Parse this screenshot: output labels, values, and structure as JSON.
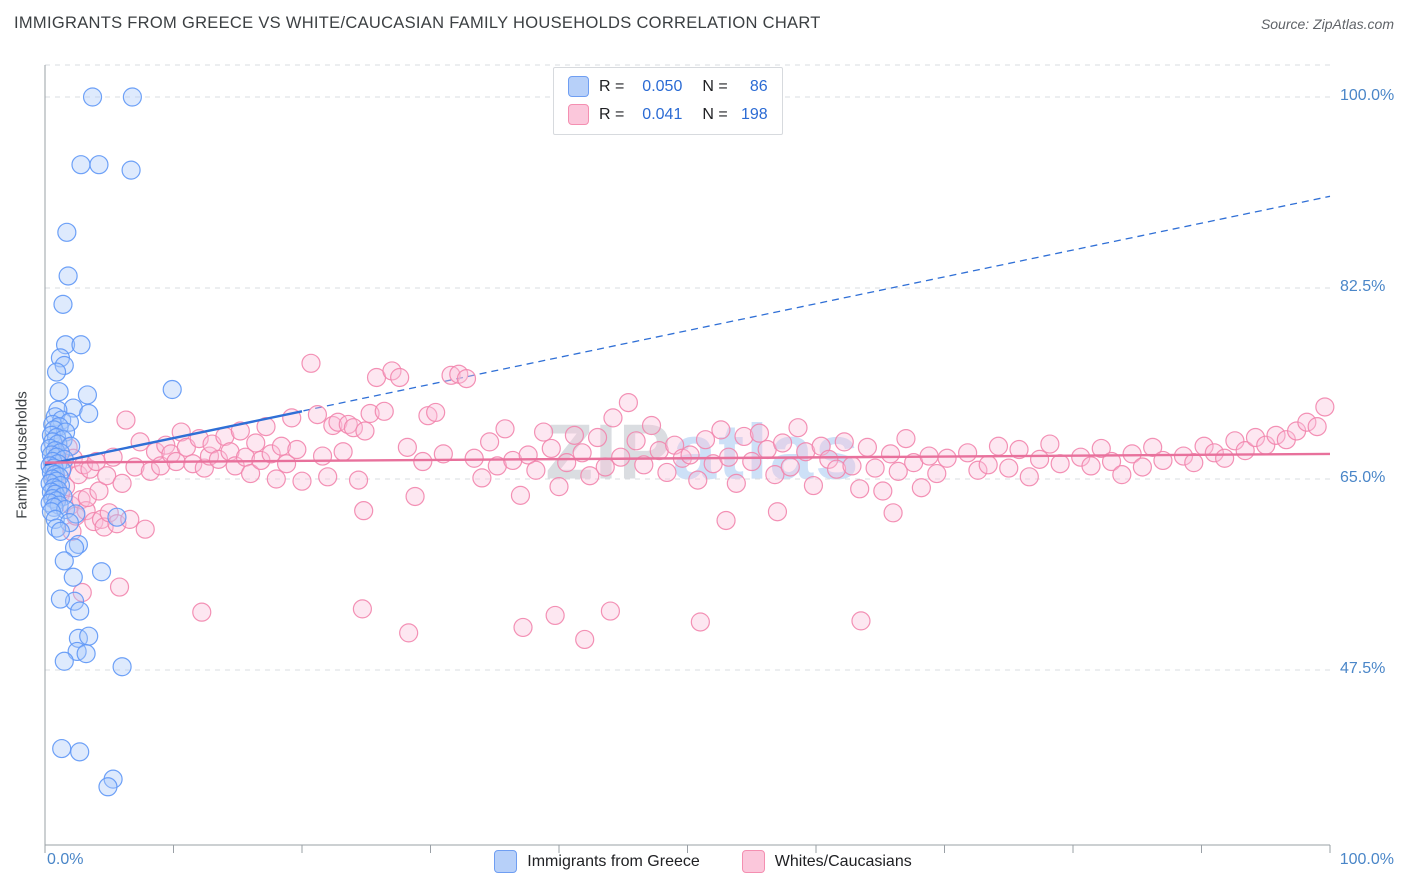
{
  "header": {
    "title": "IMMIGRANTS FROM GREECE VS WHITE/CAUCASIAN FAMILY HOUSEHOLDS CORRELATION CHART",
    "source": "Source: ZipAtlas.com"
  },
  "watermark": {
    "zip": "ZIP",
    "atlas": "atlas"
  },
  "legend_box": {
    "rows": [
      {
        "series": "greece",
        "r_label": "R =",
        "r_value": "0.050",
        "n_label": "N =",
        "n_value": "86"
      },
      {
        "series": "whites",
        "r_label": "R =",
        "r_value": "0.041",
        "n_label": "N =",
        "n_value": "198"
      }
    ]
  },
  "axes": {
    "y_label": "Family Households",
    "y_ticks": [
      "100.0%",
      "82.5%",
      "65.0%",
      "47.5%"
    ],
    "x_min_label": "0.0%",
    "x_max_label": "100.0%"
  },
  "bottom_legend": [
    {
      "label": "Immigrants from Greece"
    },
    {
      "label": "Whites/Caucasians"
    }
  ],
  "colors": {
    "blue_fill": "#a8c7fa",
    "blue_stroke": "#5e97f6",
    "pink_fill": "#f9c0d9",
    "pink_stroke": "#f285ad",
    "blue_trend": "#2f6fd6",
    "pink_trend": "#e8719c",
    "grid": "#dadce0",
    "axis": "#9aa0a6",
    "tick_label": "#4a86c8"
  },
  "chart_data": {
    "type": "scatter",
    "title": "Immigrants from Greece vs White/Caucasian Family Households Correlation Chart",
    "xlabel": "Immigrants from Greece (%)",
    "ylabel": "Family Households",
    "xlim": [
      0,
      100
    ],
    "ylim": [
      31,
      103
    ],
    "y_tick_values": [
      100,
      82.5,
      65,
      47.5
    ],
    "x_tick_step": 10,
    "legend_position": "bottom",
    "grid": "horizontal-dashed",
    "series": [
      {
        "key": "greece",
        "name": "Immigrants from Greece",
        "R": 0.05,
        "N": 86,
        "fill": "#a8c7fa",
        "stroke": "#5e97f6",
        "points": [
          [
            3.7,
            100
          ],
          [
            6.8,
            100
          ],
          [
            2.8,
            93.8
          ],
          [
            4.2,
            93.8
          ],
          [
            6.7,
            93.3
          ],
          [
            1.7,
            87.6
          ],
          [
            1.8,
            83.6
          ],
          [
            1.4,
            81.0
          ],
          [
            1.6,
            77.3
          ],
          [
            2.8,
            77.3
          ],
          [
            1.2,
            76.1
          ],
          [
            1.5,
            75.4
          ],
          [
            0.9,
            74.8
          ],
          [
            1.1,
            73.0
          ],
          [
            9.9,
            73.2
          ],
          [
            3.3,
            72.7
          ],
          [
            2.2,
            71.5
          ],
          [
            1.0,
            71.3
          ],
          [
            3.4,
            71.0
          ],
          [
            0.8,
            70.7
          ],
          [
            1.3,
            70.4
          ],
          [
            1.9,
            70.2
          ],
          [
            0.6,
            70.0
          ],
          [
            1.1,
            69.8
          ],
          [
            0.7,
            69.5
          ],
          [
            1.6,
            69.3
          ],
          [
            0.5,
            69.0
          ],
          [
            0.9,
            68.8
          ],
          [
            1.4,
            68.6
          ],
          [
            0.6,
            68.4
          ],
          [
            1.0,
            68.2
          ],
          [
            2.0,
            68.0
          ],
          [
            0.4,
            67.8
          ],
          [
            0.8,
            67.6
          ],
          [
            1.2,
            67.4
          ],
          [
            0.5,
            67.2
          ],
          [
            0.9,
            67.0
          ],
          [
            1.5,
            66.8
          ],
          [
            0.6,
            66.6
          ],
          [
            1.0,
            66.4
          ],
          [
            0.4,
            66.2
          ],
          [
            0.7,
            66.0
          ],
          [
            1.3,
            65.8
          ],
          [
            0.5,
            65.6
          ],
          [
            0.8,
            65.4
          ],
          [
            1.1,
            65.2
          ],
          [
            0.6,
            65.0
          ],
          [
            0.9,
            64.8
          ],
          [
            0.4,
            64.6
          ],
          [
            1.2,
            64.4
          ],
          [
            0.7,
            64.2
          ],
          [
            1.0,
            64.0
          ],
          [
            0.5,
            63.8
          ],
          [
            0.8,
            63.6
          ],
          [
            1.4,
            63.4
          ],
          [
            0.6,
            63.2
          ],
          [
            0.9,
            63.0
          ],
          [
            0.4,
            62.8
          ],
          [
            1.1,
            62.6
          ],
          [
            0.7,
            62.4
          ],
          [
            1.6,
            62.2
          ],
          [
            0.5,
            62.0
          ],
          [
            2.4,
            61.8
          ],
          [
            5.6,
            61.5
          ],
          [
            0.8,
            61.3
          ],
          [
            1.9,
            61.0
          ],
          [
            0.9,
            60.5
          ],
          [
            1.2,
            60.2
          ],
          [
            2.6,
            59.0
          ],
          [
            2.3,
            58.7
          ],
          [
            1.5,
            57.5
          ],
          [
            2.2,
            56.0
          ],
          [
            4.4,
            56.5
          ],
          [
            2.3,
            53.8
          ],
          [
            1.2,
            54.0
          ],
          [
            2.7,
            52.9
          ],
          [
            2.6,
            50.4
          ],
          [
            3.4,
            50.6
          ],
          [
            2.5,
            49.2
          ],
          [
            3.2,
            49.0
          ],
          [
            1.5,
            48.3
          ],
          [
            6.0,
            47.8
          ],
          [
            1.3,
            40.3
          ],
          [
            2.7,
            40.0
          ],
          [
            5.3,
            37.5
          ],
          [
            4.9,
            36.8
          ]
        ]
      },
      {
        "key": "whites",
        "name": "Whites/Caucasians",
        "R": 0.041,
        "N": 198,
        "fill": "#f9c0d9",
        "stroke": "#f285ad",
        "points": [
          [
            0.6,
            66.4
          ],
          [
            0.8,
            65.1
          ],
          [
            1.0,
            67.3
          ],
          [
            1.2,
            63.6
          ],
          [
            1.4,
            66.1
          ],
          [
            1.6,
            64.3
          ],
          [
            1.8,
            67.9
          ],
          [
            2.0,
            62.6
          ],
          [
            2.1,
            60.2
          ],
          [
            2.2,
            66.9
          ],
          [
            2.4,
            61.6
          ],
          [
            2.6,
            65.4
          ],
          [
            2.8,
            63.1
          ],
          [
            2.9,
            54.6
          ],
          [
            3.0,
            66.3
          ],
          [
            3.2,
            62.1
          ],
          [
            3.3,
            63.3
          ],
          [
            3.5,
            65.9
          ],
          [
            3.8,
            61.1
          ],
          [
            4.0,
            66.6
          ],
          [
            4.2,
            63.9
          ],
          [
            4.4,
            61.3
          ],
          [
            4.6,
            60.6
          ],
          [
            4.8,
            65.3
          ],
          [
            5.0,
            61.9
          ],
          [
            5.3,
            67.0
          ],
          [
            5.6,
            60.9
          ],
          [
            5.8,
            55.1
          ],
          [
            6.0,
            64.6
          ],
          [
            6.3,
            70.4
          ],
          [
            6.6,
            61.3
          ],
          [
            7.0,
            66.1
          ],
          [
            7.4,
            68.4
          ],
          [
            7.8,
            60.4
          ],
          [
            8.2,
            65.7
          ],
          [
            8.6,
            67.5
          ],
          [
            9.0,
            66.2
          ],
          [
            9.4,
            68.1
          ],
          [
            9.8,
            67.3
          ],
          [
            10.2,
            66.6
          ],
          [
            10.6,
            69.3
          ],
          [
            11.0,
            67.9
          ],
          [
            11.5,
            66.4
          ],
          [
            12.0,
            68.7
          ],
          [
            12.2,
            52.8
          ],
          [
            12.4,
            66.0
          ],
          [
            12.8,
            67.1
          ],
          [
            13.0,
            68.2
          ],
          [
            13.5,
            66.8
          ],
          [
            14.0,
            68.9
          ],
          [
            14.4,
            67.5
          ],
          [
            14.8,
            66.2
          ],
          [
            15.2,
            69.4
          ],
          [
            15.6,
            67.0
          ],
          [
            16.0,
            65.5
          ],
          [
            16.4,
            68.3
          ],
          [
            16.8,
            66.7
          ],
          [
            17.2,
            69.8
          ],
          [
            17.6,
            67.3
          ],
          [
            18.0,
            65.0
          ],
          [
            18.4,
            68.0
          ],
          [
            18.8,
            66.4
          ],
          [
            19.2,
            70.6
          ],
          [
            19.6,
            67.7
          ],
          [
            20.0,
            64.8
          ],
          [
            20.7,
            75.6
          ],
          [
            21.2,
            70.9
          ],
          [
            21.6,
            67.1
          ],
          [
            22.0,
            65.2
          ],
          [
            22.4,
            69.9
          ],
          [
            22.8,
            70.2
          ],
          [
            23.2,
            67.5
          ],
          [
            23.6,
            70.0
          ],
          [
            24.0,
            69.7
          ],
          [
            24.4,
            64.9
          ],
          [
            24.7,
            53.1
          ],
          [
            24.8,
            62.1
          ],
          [
            24.9,
            69.4
          ],
          [
            25.3,
            71.0
          ],
          [
            25.8,
            74.3
          ],
          [
            26.4,
            71.2
          ],
          [
            27.0,
            74.9
          ],
          [
            27.6,
            74.3
          ],
          [
            28.2,
            67.9
          ],
          [
            28.3,
            50.9
          ],
          [
            28.8,
            63.4
          ],
          [
            29.4,
            66.6
          ],
          [
            29.8,
            70.8
          ],
          [
            30.4,
            71.1
          ],
          [
            31.0,
            67.3
          ],
          [
            31.6,
            74.5
          ],
          [
            32.2,
            74.6
          ],
          [
            32.8,
            74.2
          ],
          [
            33.4,
            66.9
          ],
          [
            34.0,
            65.1
          ],
          [
            34.6,
            68.4
          ],
          [
            35.2,
            66.2
          ],
          [
            35.8,
            69.6
          ],
          [
            36.4,
            66.7
          ],
          [
            37.0,
            63.5
          ],
          [
            37.2,
            51.4
          ],
          [
            37.6,
            67.2
          ],
          [
            38.2,
            65.8
          ],
          [
            38.8,
            69.3
          ],
          [
            39.4,
            67.8
          ],
          [
            39.7,
            52.5
          ],
          [
            40.0,
            64.3
          ],
          [
            40.6,
            66.5
          ],
          [
            41.2,
            69.0
          ],
          [
            41.8,
            67.4
          ],
          [
            42.0,
            50.3
          ],
          [
            42.4,
            65.3
          ],
          [
            43.0,
            68.8
          ],
          [
            43.6,
            66.1
          ],
          [
            44.0,
            52.9
          ],
          [
            44.2,
            70.6
          ],
          [
            44.8,
            67.0
          ],
          [
            45.4,
            72.0
          ],
          [
            46.0,
            68.5
          ],
          [
            46.6,
            66.3
          ],
          [
            47.2,
            69.9
          ],
          [
            47.8,
            67.6
          ],
          [
            48.4,
            65.6
          ],
          [
            49.0,
            68.1
          ],
          [
            49.6,
            66.9
          ],
          [
            50.2,
            67.2
          ],
          [
            50.8,
            64.9
          ],
          [
            51.0,
            51.9
          ],
          [
            51.4,
            68.6
          ],
          [
            52.0,
            66.4
          ],
          [
            52.6,
            69.5
          ],
          [
            53.0,
            61.2
          ],
          [
            53.2,
            67.0
          ],
          [
            53.8,
            64.6
          ],
          [
            54.4,
            68.9
          ],
          [
            55.0,
            66.6
          ],
          [
            55.6,
            69.2
          ],
          [
            56.2,
            67.7
          ],
          [
            56.8,
            65.4
          ],
          [
            57.0,
            62.0
          ],
          [
            57.4,
            68.3
          ],
          [
            58.0,
            66.1
          ],
          [
            58.6,
            69.7
          ],
          [
            59.2,
            67.5
          ],
          [
            59.8,
            64.4
          ],
          [
            60.4,
            68.0
          ],
          [
            61.0,
            66.8
          ],
          [
            61.6,
            65.9
          ],
          [
            62.2,
            68.4
          ],
          [
            62.8,
            66.2
          ],
          [
            63.4,
            64.1
          ],
          [
            63.5,
            52.0
          ],
          [
            64.0,
            67.9
          ],
          [
            64.6,
            66.0
          ],
          [
            65.2,
            63.9
          ],
          [
            65.8,
            67.3
          ],
          [
            66.0,
            61.9
          ],
          [
            66.4,
            65.7
          ],
          [
            67.0,
            68.7
          ],
          [
            67.6,
            66.5
          ],
          [
            68.2,
            64.2
          ],
          [
            68.8,
            67.1
          ],
          [
            69.4,
            65.5
          ],
          [
            70.2,
            66.9
          ],
          [
            71.8,
            67.4
          ],
          [
            72.6,
            65.8
          ],
          [
            73.4,
            66.3
          ],
          [
            74.2,
            68.0
          ],
          [
            75.0,
            66.0
          ],
          [
            75.8,
            67.7
          ],
          [
            76.6,
            65.2
          ],
          [
            77.4,
            66.8
          ],
          [
            78.2,
            68.2
          ],
          [
            79.0,
            66.4
          ],
          [
            80.6,
            67.0
          ],
          [
            81.4,
            66.2
          ],
          [
            82.2,
            67.8
          ],
          [
            83.0,
            66.6
          ],
          [
            83.8,
            65.4
          ],
          [
            84.6,
            67.3
          ],
          [
            85.4,
            66.1
          ],
          [
            86.2,
            67.9
          ],
          [
            87.0,
            66.7
          ],
          [
            88.6,
            67.1
          ],
          [
            89.4,
            66.5
          ],
          [
            90.2,
            68.0
          ],
          [
            91.0,
            67.4
          ],
          [
            91.8,
            66.9
          ],
          [
            92.6,
            68.5
          ],
          [
            93.4,
            67.6
          ],
          [
            94.2,
            68.8
          ],
          [
            95.0,
            68.1
          ],
          [
            95.8,
            69.0
          ],
          [
            96.6,
            68.6
          ],
          [
            97.4,
            69.4
          ],
          [
            98.2,
            70.2
          ],
          [
            99.0,
            69.8
          ],
          [
            99.6,
            71.6
          ]
        ]
      }
    ],
    "trend_lines": [
      {
        "series": "greece",
        "color": "#2f6fd6",
        "solid": {
          "x1": 0,
          "y1": 66.3,
          "x2": 20,
          "y2": 71.2
        },
        "dashed": {
          "x1": 0,
          "y1": 66.3,
          "x2": 100,
          "y2": 90.9
        }
      },
      {
        "series": "whites",
        "color": "#e8719c",
        "solid": {
          "x1": 0,
          "y1": 66.5,
          "x2": 100,
          "y2": 67.3
        }
      }
    ]
  }
}
